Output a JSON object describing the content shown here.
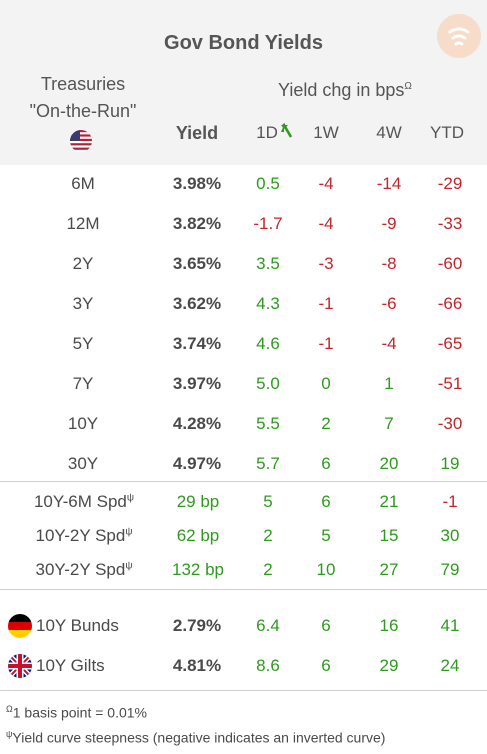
{
  "title": "Gov Bond Yields",
  "header": {
    "treasuries_line1": "Treasuries",
    "treasuries_line2": "\"On-the-Run\"",
    "yield_chg_label": "Yield chg in bps",
    "yield_chg_sup": "Ω",
    "columns": [
      "Yield",
      "1D",
      "1W",
      "4W",
      "YTD"
    ]
  },
  "colors": {
    "positive": "#2e9a1e",
    "negative": "#c0262b",
    "header_bg": "#f3f3f3"
  },
  "treasury_rows": [
    {
      "label": "6M",
      "yield": "3.98%",
      "d1": "0.5",
      "w1": "-4",
      "w4": "-14",
      "ytd": "-29"
    },
    {
      "label": "12M",
      "yield": "3.82%",
      "d1": "-1.7",
      "w1": "-4",
      "w4": "-9",
      "ytd": "-33"
    },
    {
      "label": "2Y",
      "yield": "3.65%",
      "d1": "3.5",
      "w1": "-3",
      "w4": "-8",
      "ytd": "-60"
    },
    {
      "label": "3Y",
      "yield": "3.62%",
      "d1": "4.3",
      "w1": "-1",
      "w4": "-6",
      "ytd": "-66"
    },
    {
      "label": "5Y",
      "yield": "3.74%",
      "d1": "4.6",
      "w1": "-1",
      "w4": "-4",
      "ytd": "-65"
    },
    {
      "label": "7Y",
      "yield": "3.97%",
      "d1": "5.0",
      "w1": "0",
      "w4": "1",
      "ytd": "-51"
    },
    {
      "label": "10Y",
      "yield": "4.28%",
      "d1": "5.5",
      "w1": "2",
      "w4": "7",
      "ytd": "-30"
    },
    {
      "label": "30Y",
      "yield": "4.97%",
      "d1": "5.7",
      "w1": "6",
      "w4": "20",
      "ytd": "19"
    }
  ],
  "spread_rows": [
    {
      "label": "10Y-6M Spd",
      "sup": "ψ",
      "yield": "29 bp",
      "d1": "5",
      "w1": "6",
      "w4": "21",
      "ytd": "-1"
    },
    {
      "label": "10Y-2Y Spd",
      "sup": "ψ",
      "yield": "62 bp",
      "d1": "2",
      "w1": "5",
      "w4": "15",
      "ytd": "30"
    },
    {
      "label": "30Y-2Y Spd",
      "sup": "ψ",
      "yield": "132 bp",
      "d1": "2",
      "w1": "10",
      "w4": "27",
      "ytd": "79"
    }
  ],
  "intl_rows": [
    {
      "label": "10Y Bunds",
      "flag": "germany-flag-icon",
      "yield": "2.79%",
      "d1": "6.4",
      "w1": "6",
      "w4": "16",
      "ytd": "41"
    },
    {
      "label": "10Y Gilts",
      "flag": "uk-flag-icon",
      "yield": "4.81%",
      "d1": "8.6",
      "w1": "6",
      "w4": "29",
      "ytd": "24"
    }
  ],
  "footnotes": [
    {
      "sup": "Ω",
      "text": "1 basis point = 0.01%"
    },
    {
      "sup": "ψ",
      "text": "Yield curve steepness (negative indicates an inverted curve)"
    }
  ]
}
